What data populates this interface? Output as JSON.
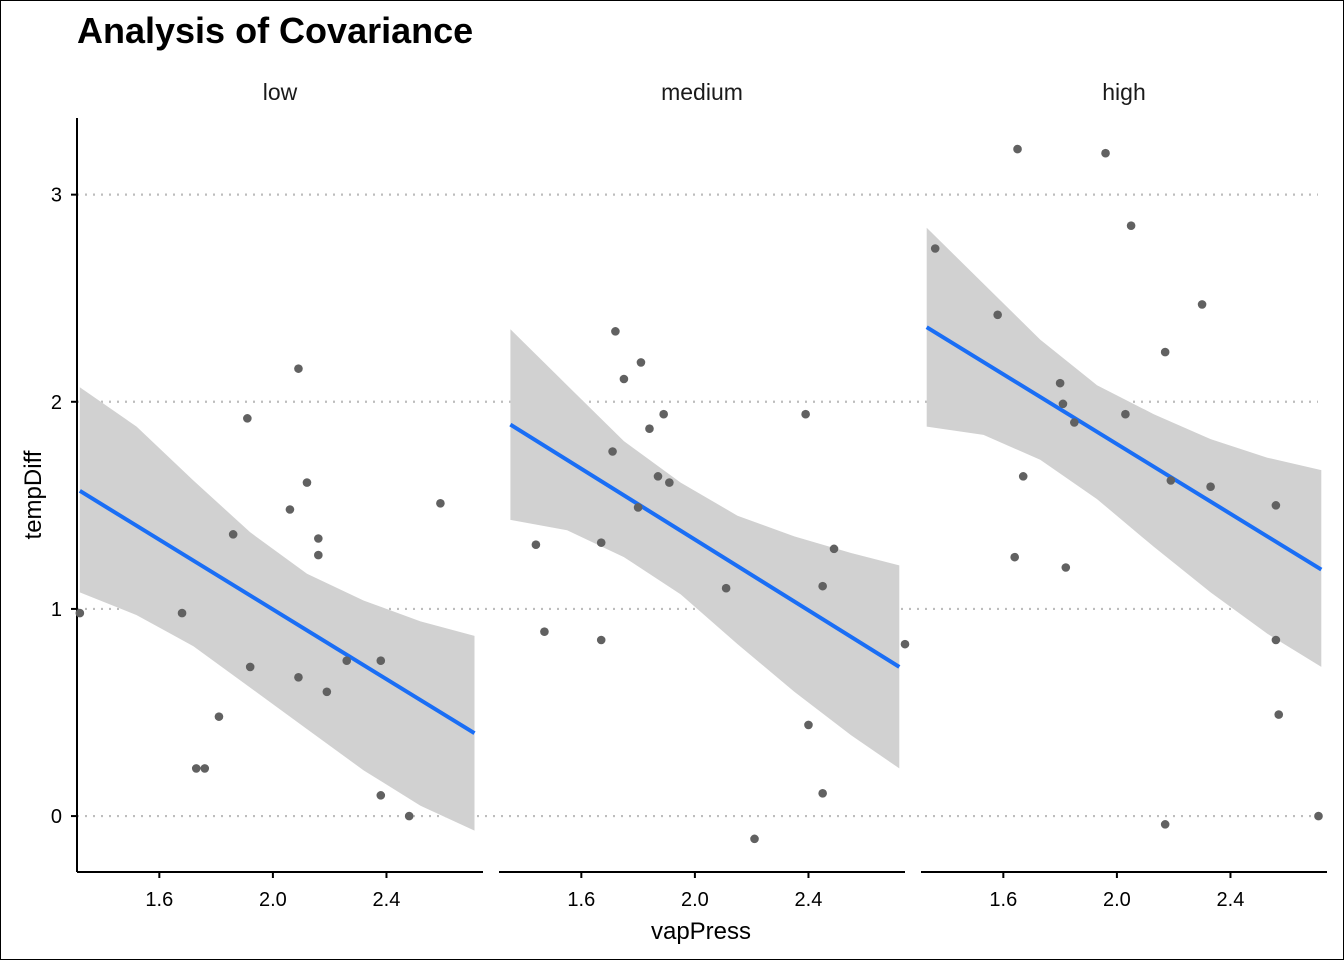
{
  "chart_data": {
    "type": "scatter",
    "title": "Analysis of Covariance",
    "xlabel": "vapPress",
    "ylabel": "tempDiff",
    "xlim": [
      1.31,
      2.74
    ],
    "ylim": [
      -0.27,
      3.37
    ],
    "xticks": [
      1.6,
      2.0,
      2.4
    ],
    "xtick_labels": [
      "1.6",
      "2.0",
      "2.4"
    ],
    "yticks": [
      0,
      1,
      2,
      3
    ],
    "ytick_labels": [
      "0",
      "1",
      "2",
      "3"
    ],
    "grid": "horizontal dotted",
    "colors": {
      "points": "#616161",
      "fit_line": "#1a6ef5",
      "ribbon": "#d1d1d1",
      "grid": "#bdbdbd"
    },
    "panels": [
      {
        "label": "low",
        "points": [
          {
            "x": 1.32,
            "y": 0.98
          },
          {
            "x": 1.68,
            "y": 0.98
          },
          {
            "x": 1.86,
            "y": 1.36
          },
          {
            "x": 1.91,
            "y": 1.92
          },
          {
            "x": 1.92,
            "y": 0.72
          },
          {
            "x": 1.81,
            "y": 0.48
          },
          {
            "x": 1.73,
            "y": 0.23
          },
          {
            "x": 1.76,
            "y": 0.23
          },
          {
            "x": 2.06,
            "y": 1.48
          },
          {
            "x": 2.09,
            "y": 2.16
          },
          {
            "x": 2.09,
            "y": 0.67
          },
          {
            "x": 2.12,
            "y": 1.61
          },
          {
            "x": 2.16,
            "y": 1.34
          },
          {
            "x": 2.16,
            "y": 1.26
          },
          {
            "x": 2.19,
            "y": 0.6
          },
          {
            "x": 2.26,
            "y": 0.75
          },
          {
            "x": 2.38,
            "y": 0.75
          },
          {
            "x": 2.38,
            "y": 0.1
          },
          {
            "x": 2.48,
            "y": 0.0
          },
          {
            "x": 2.59,
            "y": 1.51
          }
        ],
        "fit": {
          "x": [
            1.32,
            2.71
          ],
          "y": [
            1.57,
            0.4
          ]
        },
        "ci": {
          "x": [
            1.32,
            1.52,
            1.72,
            1.92,
            2.12,
            2.32,
            2.52,
            2.71
          ],
          "lower": [
            1.08,
            0.97,
            0.82,
            0.62,
            0.42,
            0.22,
            0.05,
            -0.07
          ],
          "upper": [
            2.07,
            1.88,
            1.62,
            1.37,
            1.17,
            1.04,
            0.94,
            0.87
          ]
        }
      },
      {
        "label": "medium",
        "points": [
          {
            "x": 1.44,
            "y": 1.31
          },
          {
            "x": 1.47,
            "y": 0.89
          },
          {
            "x": 1.67,
            "y": 1.32
          },
          {
            "x": 1.67,
            "y": 0.85
          },
          {
            "x": 1.71,
            "y": 1.76
          },
          {
            "x": 1.72,
            "y": 2.34
          },
          {
            "x": 1.75,
            "y": 2.11
          },
          {
            "x": 1.81,
            "y": 2.19
          },
          {
            "x": 1.84,
            "y": 1.87
          },
          {
            "x": 1.87,
            "y": 1.64
          },
          {
            "x": 1.89,
            "y": 1.94
          },
          {
            "x": 1.91,
            "y": 1.61
          },
          {
            "x": 1.8,
            "y": 1.49
          },
          {
            "x": 2.11,
            "y": 1.1
          },
          {
            "x": 2.21,
            "y": -0.11
          },
          {
            "x": 2.39,
            "y": 1.94
          },
          {
            "x": 2.4,
            "y": 0.44
          },
          {
            "x": 2.45,
            "y": 1.11
          },
          {
            "x": 2.45,
            "y": 0.11
          },
          {
            "x": 2.49,
            "y": 1.29
          },
          {
            "x": 2.74,
            "y": 0.83
          }
        ],
        "fit": {
          "x": [
            1.35,
            2.72
          ],
          "y": [
            1.89,
            0.72
          ]
        },
        "ci": {
          "x": [
            1.35,
            1.55,
            1.75,
            1.95,
            2.15,
            2.35,
            2.55,
            2.72
          ],
          "lower": [
            1.43,
            1.38,
            1.25,
            1.07,
            0.83,
            0.6,
            0.39,
            0.23
          ],
          "upper": [
            2.35,
            2.08,
            1.81,
            1.61,
            1.45,
            1.35,
            1.27,
            1.21
          ]
        }
      },
      {
        "label": "high",
        "points": [
          {
            "x": 1.36,
            "y": 2.74
          },
          {
            "x": 1.58,
            "y": 2.42
          },
          {
            "x": 1.65,
            "y": 3.22
          },
          {
            "x": 1.64,
            "y": 1.25
          },
          {
            "x": 1.67,
            "y": 1.64
          },
          {
            "x": 1.8,
            "y": 2.09
          },
          {
            "x": 1.81,
            "y": 1.99
          },
          {
            "x": 1.82,
            "y": 1.2
          },
          {
            "x": 1.85,
            "y": 1.9
          },
          {
            "x": 1.96,
            "y": 3.2
          },
          {
            "x": 2.03,
            "y": 1.94
          },
          {
            "x": 2.05,
            "y": 2.85
          },
          {
            "x": 2.17,
            "y": 2.24
          },
          {
            "x": 2.19,
            "y": 1.62
          },
          {
            "x": 2.17,
            "y": -0.04
          },
          {
            "x": 2.3,
            "y": 2.47
          },
          {
            "x": 2.33,
            "y": 1.59
          },
          {
            "x": 2.56,
            "y": 0.85
          },
          {
            "x": 2.56,
            "y": 1.5
          },
          {
            "x": 2.57,
            "y": 0.49
          },
          {
            "x": 2.71,
            "y": 0.0
          }
        ],
        "fit": {
          "x": [
            1.33,
            2.72
          ],
          "y": [
            2.36,
            1.19
          ]
        },
        "ci": {
          "x": [
            1.33,
            1.53,
            1.73,
            1.93,
            2.13,
            2.33,
            2.53,
            2.72
          ],
          "lower": [
            1.88,
            1.84,
            1.72,
            1.53,
            1.3,
            1.08,
            0.88,
            0.72
          ],
          "upper": [
            2.84,
            2.57,
            2.3,
            2.08,
            1.94,
            1.82,
            1.73,
            1.67
          ]
        }
      }
    ]
  }
}
